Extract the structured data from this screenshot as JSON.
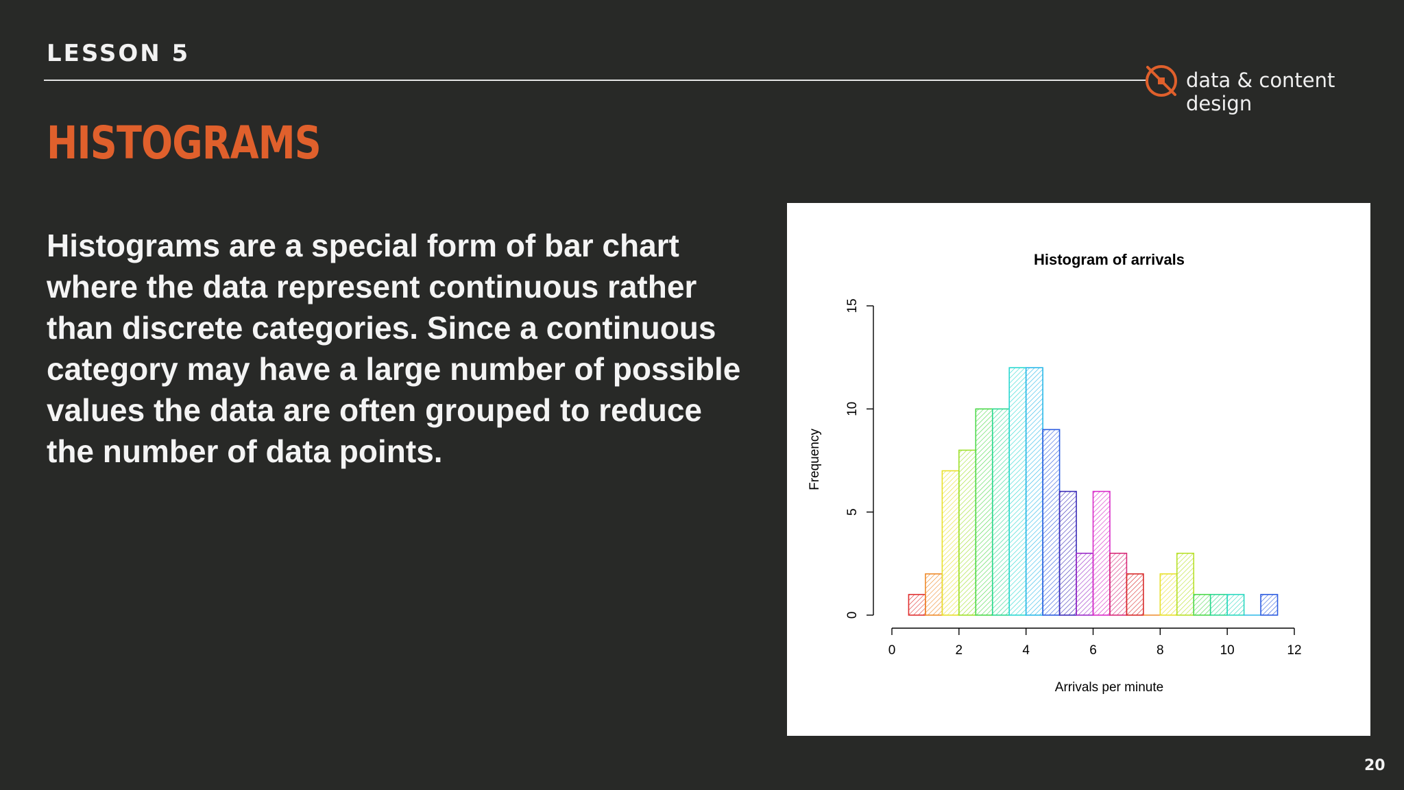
{
  "header": {
    "lesson": "LESSON 5",
    "brand": "data & content design",
    "brand_color": "#e0602c"
  },
  "slide": {
    "title": "HISTOGRAMS",
    "body": "Histograms are a special form of bar chart where the data represent continuous rather than discrete categories. Since a continuous category may have a large number of possible values the data are often grouped to reduce the number of data points.",
    "page_number": "20"
  },
  "chart_data": {
    "type": "bar",
    "title": "Histogram of arrivals",
    "xlabel": "Arrivals per minute",
    "ylabel": "Frequency",
    "xlim": [
      0,
      12
    ],
    "ylim": [
      0,
      15
    ],
    "x_ticks": [
      0,
      2,
      4,
      6,
      8,
      10,
      12
    ],
    "y_ticks": [
      0,
      5,
      10,
      15
    ],
    "bin_width": 0.5,
    "bins": [
      {
        "start": 0.5,
        "end": 1.0,
        "count": 1,
        "color": "#e03030"
      },
      {
        "start": 1.0,
        "end": 1.5,
        "count": 2,
        "color": "#ee8a2a"
      },
      {
        "start": 1.5,
        "end": 2.0,
        "count": 7,
        "color": "#e8e02a"
      },
      {
        "start": 2.0,
        "end": 2.5,
        "count": 8,
        "color": "#9ee02a"
      },
      {
        "start": 2.5,
        "end": 3.0,
        "count": 10,
        "color": "#4cd84a"
      },
      {
        "start": 3.0,
        "end": 3.5,
        "count": 10,
        "color": "#2ad890"
      },
      {
        "start": 3.5,
        "end": 4.0,
        "count": 12,
        "color": "#2ad8d0"
      },
      {
        "start": 4.0,
        "end": 4.5,
        "count": 12,
        "color": "#2ab8e8"
      },
      {
        "start": 4.5,
        "end": 5.0,
        "count": 9,
        "color": "#2a5ae0"
      },
      {
        "start": 5.0,
        "end": 5.5,
        "count": 6,
        "color": "#3a2ab8"
      },
      {
        "start": 5.5,
        "end": 6.0,
        "count": 3,
        "color": "#9a2ac8"
      },
      {
        "start": 6.0,
        "end": 6.5,
        "count": 6,
        "color": "#d82ac8"
      },
      {
        "start": 6.5,
        "end": 7.0,
        "count": 3,
        "color": "#d82a78"
      },
      {
        "start": 7.0,
        "end": 7.5,
        "count": 2,
        "color": "#d82a2a"
      },
      {
        "start": 7.5,
        "end": 8.0,
        "count": 0,
        "color": "#ee8a2a"
      },
      {
        "start": 8.0,
        "end": 8.5,
        "count": 2,
        "color": "#e8e02a"
      },
      {
        "start": 8.5,
        "end": 9.0,
        "count": 3,
        "color": "#b8e02a"
      },
      {
        "start": 9.0,
        "end": 9.5,
        "count": 1,
        "color": "#4cd84a"
      },
      {
        "start": 9.5,
        "end": 10.0,
        "count": 1,
        "color": "#2ad890"
      },
      {
        "start": 10.0,
        "end": 10.5,
        "count": 1,
        "color": "#2ad8c0"
      },
      {
        "start": 10.5,
        "end": 11.0,
        "count": 0,
        "color": "#2ab8e8"
      },
      {
        "start": 11.0,
        "end": 11.5,
        "count": 1,
        "color": "#2a5ae0"
      }
    ]
  }
}
